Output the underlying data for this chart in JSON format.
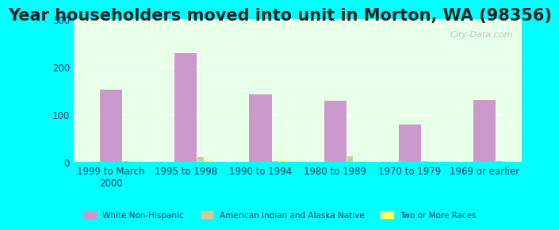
{
  "title": "Year householders moved into unit in Morton, WA (98356)",
  "categories": [
    "1999 to March\n2000",
    "1995 to 1998",
    "1990 to 1994",
    "1980 to 1989",
    "1970 to 1979",
    "1969 or earlier"
  ],
  "series": {
    "White Non-Hispanic": [
      152,
      228,
      142,
      128,
      78,
      130
    ],
    "American Indian and Alaska Native": [
      2,
      10,
      2,
      12,
      2,
      2
    ],
    "Two or More Races": [
      2,
      6,
      5,
      2,
      2,
      2
    ]
  },
  "colors": {
    "White Non-Hispanic": "#cc99cc",
    "American Indian and Alaska Native": "#cccc99",
    "Two or More Races": "#ffff66"
  },
  "bar_width": 0.25,
  "ylim": [
    0,
    300
  ],
  "yticks": [
    0,
    100,
    200,
    300
  ],
  "background_top": "#e8ffe8",
  "background_bottom": "#f8fff8",
  "outer_bg": "#00ffff",
  "watermark": "City-Data.com",
  "legend_labels": [
    "White Non-Hispanic",
    "American Indian and Alaska Native",
    "Two or More Races"
  ],
  "title_fontsize": 15,
  "tick_fontsize": 8.5
}
